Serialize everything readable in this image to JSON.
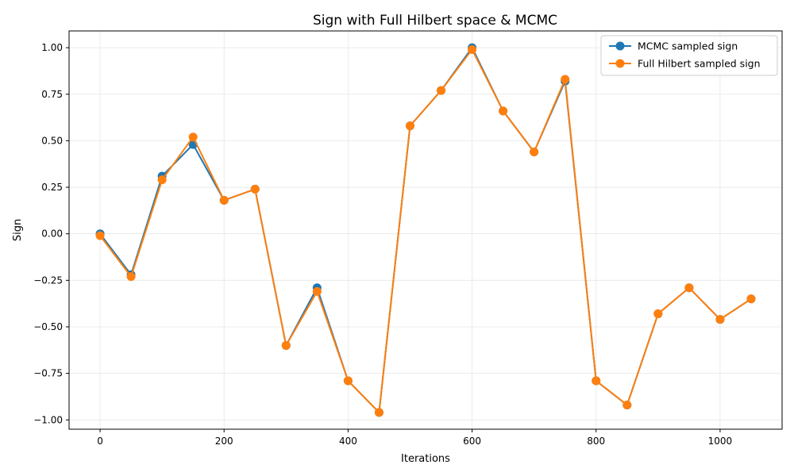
{
  "chart_data": {
    "type": "line",
    "title": "Sign with Full Hilbert space & MCMC",
    "xlabel": "Iterations",
    "ylabel": "Sign",
    "xlim": [
      -50,
      1100
    ],
    "ylim": [
      -1.05,
      1.09
    ],
    "xticks": [
      0,
      200,
      400,
      600,
      800,
      1000
    ],
    "yticks": [
      -1.0,
      -0.75,
      -0.5,
      -0.25,
      0.0,
      0.25,
      0.5,
      0.75,
      1.0
    ],
    "xtick_labels": [
      "0",
      "200",
      "400",
      "600",
      "800",
      "1000"
    ],
    "ytick_labels": [
      "−1.00",
      "−0.75",
      "−0.50",
      "−0.25",
      "0.00",
      "0.25",
      "0.50",
      "0.75",
      "1.00"
    ],
    "grid": true,
    "legend_position": "top-right",
    "x": [
      0,
      50,
      100,
      150,
      200,
      250,
      300,
      350,
      400,
      450,
      500,
      550,
      600,
      650,
      700,
      750,
      800,
      850,
      900,
      950,
      1000,
      1050
    ],
    "series": [
      {
        "name": "MCMC sampled sign",
        "color": "#1f77b4",
        "values": [
          0.0,
          -0.22,
          0.31,
          0.48,
          0.18,
          0.24,
          -0.6,
          -0.29,
          -0.79,
          -0.96,
          0.58,
          0.77,
          1.0,
          0.66,
          0.44,
          0.82,
          -0.79,
          -0.92,
          -0.43,
          -0.29,
          -0.46,
          -0.35
        ]
      },
      {
        "name": "Full Hilbert sampled sign",
        "color": "#ff7f0e",
        "values": [
          -0.01,
          -0.23,
          0.29,
          0.52,
          0.18,
          0.24,
          -0.6,
          -0.31,
          -0.79,
          -0.96,
          0.58,
          0.77,
          0.99,
          0.66,
          0.44,
          0.83,
          -0.79,
          -0.92,
          -0.43,
          -0.29,
          -0.46,
          -0.35
        ]
      }
    ]
  }
}
